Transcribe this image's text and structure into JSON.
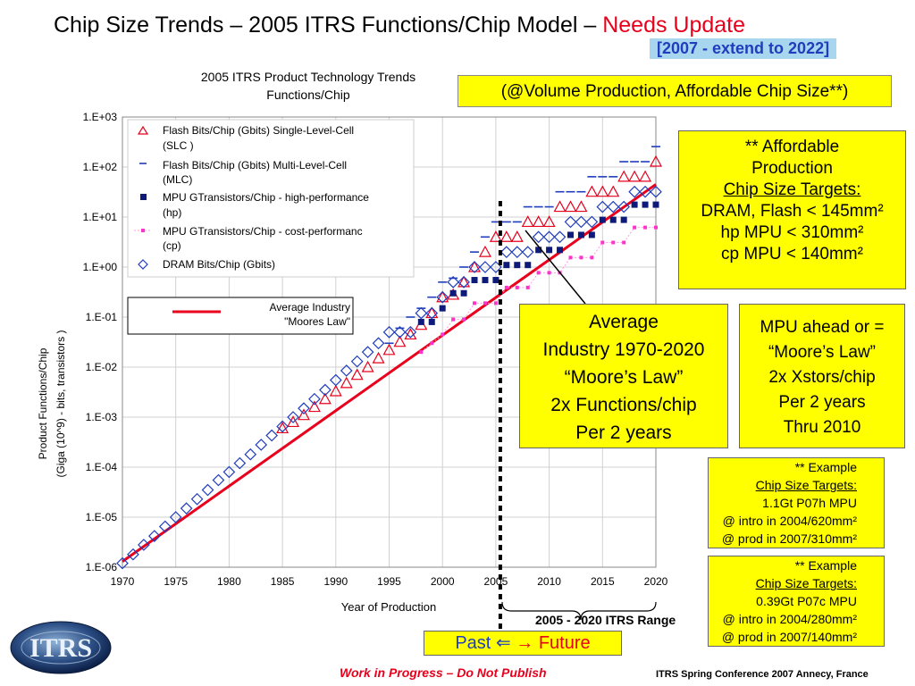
{
  "slide": {
    "title_main": "Chip Size Trends – 2005 ITRS Functions/Chip Model – ",
    "title_highlight": "Needs Update",
    "subtitle_tag": "[2007 - extend to 2022]",
    "volume_note": "(@Volume Production, Affordable Chip Size**)",
    "range_label": "2005 - 2020 ITRS Range",
    "past_label": "Past",
    "future_label": "Future",
    "arrow_left": "⇐",
    "arrow_right": "→",
    "wip_note": "Work in Progress – Do Not Publish",
    "conf_note": "ITRS Spring Conference 2007     Annecy, France",
    "logo_text": "ITRS"
  },
  "boxes": {
    "affordable": {
      "line1": "** Affordable",
      "line2": "Production",
      "line3": "Chip Size Targets:",
      "line4": "DRAM, Flash < 145mm²",
      "line5": "hp MPU < 310mm²",
      "line6": "cp MPU < 140mm²"
    },
    "moores": {
      "line1": "Average",
      "line2": "Industry 1970-2020",
      "line3": "“Moore’s Law”",
      "line4": "2x Functions/chip",
      "line5": "Per 2 years"
    },
    "mpu": {
      "line1": "MPU ahead or =",
      "line2": "“Moore’s Law”",
      "line3": "2x Xstors/chip",
      "line4": "Per 2 years",
      "line5": "Thru 2010"
    },
    "example1": {
      "line1": "** Example",
      "line2": "Chip Size Targets:",
      "line3": "1.1Gt P07h MPU",
      "line4": "@ intro in 2004/620mm²",
      "line5": "@ prod in 2007/310mm²"
    },
    "example2": {
      "line1": "** Example",
      "line2": "Chip Size Targets:",
      "line3": "0.39Gt P07c MPU",
      "line4": "@ intro in 2004/280mm²",
      "line5": "@ prod in 2007/140mm²"
    }
  },
  "chart_data": {
    "type": "scatter",
    "title_line1": "2005 ITRS Product Technology Trends",
    "title_line2": "Functions/Chip",
    "ylabel_line1": "Product Functions/Chip",
    "ylabel_line2": "(Giga (10^9) - bits, transistors )",
    "xlabel": "Year of Production",
    "y_scale": "log",
    "ylim": [
      1e-06,
      1000
    ],
    "xlim": [
      1970,
      2020
    ],
    "x_ticks": [
      "1970",
      "1975",
      "1980",
      "1985",
      "1990",
      "1995",
      "2000",
      "2005",
      "2010",
      "2015",
      "2020"
    ],
    "y_ticks": [
      "1.E-06",
      "1.E-05",
      "1.E-04",
      "1.E-03",
      "1.E-02",
      "1.E-01",
      "1.E+00",
      "1.E+01",
      "1.E+02",
      "1.E+03"
    ],
    "grid": true,
    "legend_position": "top-left",
    "moores_law_legend": "Average Industry \"Moores Law\"",
    "moores_law_legend_line1": "Average Industry",
    "moores_law_legend_line2": "\"Moores Law\"",
    "moores_law_line": {
      "x": [
        1970,
        2020
      ],
      "y": [
        1.3e-06,
        45
      ],
      "color": "#e8001c"
    },
    "itrs_range_start": 2005,
    "series": [
      {
        "name": "Flash Bits/Chip (Gbits) Single-Level-Cell (SLC )",
        "name_line1": "Flash Bits/Chip (Gbits) Single-Level-Cell",
        "name_line2": "(SLC )",
        "marker": "triangle",
        "color": "#e8001c",
        "x": [
          1985,
          1986,
          1987,
          1988,
          1989,
          1990,
          1991,
          1992,
          1993,
          1994,
          1995,
          1996,
          1997,
          1998,
          1999,
          2000,
          2001,
          2002,
          2003,
          2004,
          2005,
          2006,
          2007,
          2008,
          2009,
          2010,
          2011,
          2012,
          2013,
          2014,
          2015,
          2016,
          2017,
          2018,
          2019,
          2020
        ],
        "y": [
          0.0006,
          0.0008,
          0.0011,
          0.0016,
          0.0023,
          0.0033,
          0.0048,
          0.007,
          0.01,
          0.015,
          0.022,
          0.032,
          0.045,
          0.07,
          0.12,
          0.25,
          0.28,
          0.5,
          1,
          2,
          4,
          4,
          4,
          8,
          8,
          8,
          16,
          16,
          16,
          32,
          32,
          32,
          64,
          64,
          64,
          128
        ]
      },
      {
        "name": "Flash Bits/Chip (Gbits) Multi-Level-Cell (MLC)",
        "name_line1": "Flash Bits/Chip (Gbits) Multi-Level-Cell",
        "name_line2": "(MLC)",
        "marker": "dash",
        "color": "#1f3dbd",
        "x": [
          1995,
          1996,
          1997,
          1998,
          1999,
          2000,
          2001,
          2002,
          2003,
          2004,
          2005,
          2006,
          2007,
          2008,
          2009,
          2010,
          2011,
          2012,
          2013,
          2014,
          2015,
          2016,
          2017,
          2018,
          2019,
          2020
        ],
        "y": [
          0.03,
          0.06,
          0.1,
          0.15,
          0.25,
          0.5,
          0.6,
          1,
          2,
          4,
          8,
          8,
          8,
          16,
          16,
          16,
          32,
          32,
          32,
          64,
          64,
          64,
          128,
          128,
          128,
          256
        ]
      },
      {
        "name": "MPU GTransistors/Chip - high-performance (hp)",
        "name_line1": "MPU GTransistors/Chip - high-performance",
        "name_line2": "(hp)",
        "marker": "square",
        "color": "#0d1a7a",
        "x": [
          1998,
          1999,
          2000,
          2001,
          2002,
          2003,
          2004,
          2005,
          2006,
          2007,
          2008,
          2009,
          2010,
          2011,
          2012,
          2013,
          2014,
          2015,
          2016,
          2017,
          2018,
          2019,
          2020
        ],
        "y": [
          0.08,
          0.08,
          0.15,
          0.3,
          0.3,
          0.55,
          0.55,
          0.55,
          1.1,
          1.1,
          1.1,
          2.2,
          2.2,
          2.2,
          4.4,
          4.4,
          4.4,
          8.8,
          8.8,
          8.8,
          17.7,
          17.7,
          17.7
        ]
      },
      {
        "name": "MPU GTransistors/Chip - cost-performanc (cp)",
        "name_line1": "MPU GTransistors/Chip - cost-performanc",
        "name_line2": "(cp)",
        "marker": "small-square",
        "color": "#ff33cc",
        "x": [
          1998,
          1999,
          2000,
          2001,
          2002,
          2003,
          2004,
          2005,
          2006,
          2007,
          2008,
          2009,
          2010,
          2011,
          2012,
          2013,
          2014,
          2015,
          2016,
          2017,
          2018,
          2019,
          2020
        ],
        "y": [
          0.02,
          0.03,
          0.045,
          0.09,
          0.09,
          0.19,
          0.19,
          0.19,
          0.39,
          0.39,
          0.39,
          0.77,
          0.77,
          0.77,
          1.55,
          1.55,
          1.55,
          3.1,
          3.1,
          3.1,
          6.2,
          6.2,
          6.2
        ]
      },
      {
        "name": "DRAM Bits/Chip (Gbits)",
        "marker": "diamond",
        "color": "#1f3dbd",
        "x": [
          1970,
          1971,
          1972,
          1973,
          1974,
          1975,
          1976,
          1977,
          1978,
          1979,
          1980,
          1981,
          1982,
          1983,
          1984,
          1985,
          1986,
          1987,
          1988,
          1989,
          1990,
          1991,
          1992,
          1993,
          1994,
          1995,
          1996,
          1997,
          1998,
          1999,
          2000,
          2001,
          2002,
          2003,
          2004,
          2005,
          2006,
          2007,
          2008,
          2009,
          2010,
          2011,
          2012,
          2013,
          2014,
          2015,
          2016,
          2017,
          2018,
          2019,
          2020
        ],
        "y": [
          1.2e-06,
          1.8e-06,
          2.8e-06,
          4.2e-06,
          6.5e-06,
          1e-05,
          1.5e-05,
          2.3e-05,
          3.5e-05,
          5.5e-05,
          8e-05,
          0.00012,
          0.00018,
          0.00028,
          0.00043,
          0.00065,
          0.001,
          0.0015,
          0.0023,
          0.0035,
          0.0055,
          0.0085,
          0.013,
          0.02,
          0.03,
          0.05,
          0.05,
          0.05,
          0.12,
          0.12,
          0.25,
          0.5,
          0.5,
          1,
          1,
          1,
          2,
          2,
          2,
          4,
          4,
          4,
          8,
          8,
          8,
          16,
          16,
          16,
          32,
          32,
          32
        ]
      }
    ]
  }
}
